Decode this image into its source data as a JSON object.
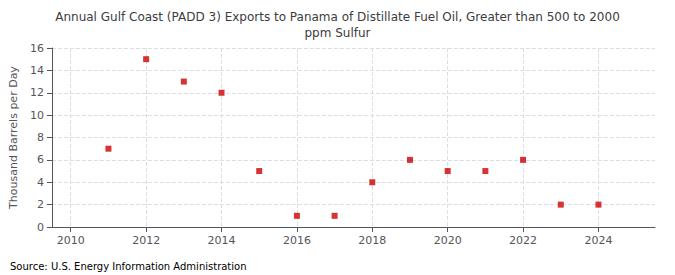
{
  "chart_data": {
    "type": "scatter",
    "title": "Annual Gulf Coast (PADD 3) Exports to Panama of Distillate Fuel Oil, Greater than 500 to 2000\nppm Sulfur",
    "y_label": "Thousand Barrels per Day",
    "annotations": [
      "Source: U.S. Energy Information Administration"
    ],
    "x": [
      2011,
      2012,
      2013,
      2014,
      2015,
      2016,
      2017,
      2018,
      2019,
      2020,
      2021,
      2022,
      2023,
      2024
    ],
    "values": [
      7,
      15,
      13,
      12,
      5,
      1,
      1,
      4,
      6,
      5,
      5,
      6,
      2,
      2
    ],
    "color": "#cc0000",
    "marker": "square",
    "xlim": [
      2009.5,
      2025.5
    ],
    "xticks": [
      2010,
      2012,
      2014,
      2016,
      2018,
      2020,
      2022,
      2024
    ],
    "ylim": [
      0,
      16
    ],
    "yticks": [
      0,
      2,
      4,
      6,
      8,
      10,
      12,
      14,
      16
    ],
    "grid": true
  }
}
